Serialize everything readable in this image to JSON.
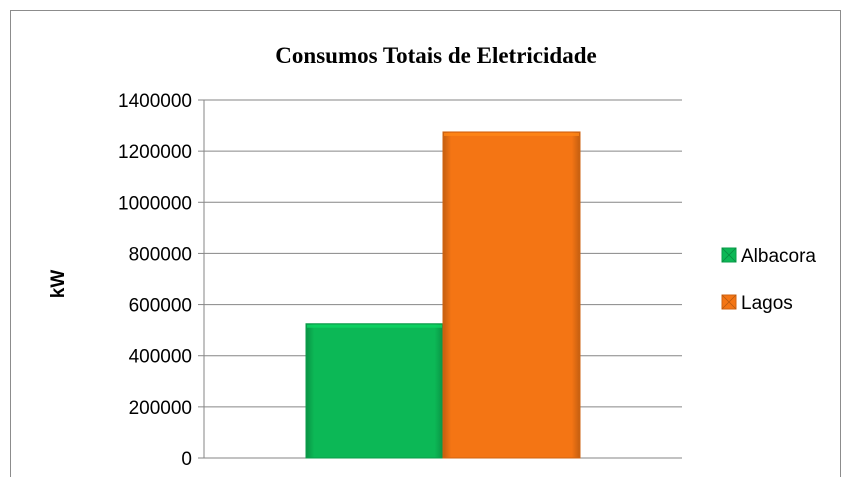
{
  "chart_data": {
    "type": "bar",
    "title": "Consumos Totais de Eletricidade",
    "xlabel": "",
    "ylabel": "kW",
    "ylim": [
      0,
      1400000
    ],
    "yticks": [
      0,
      200000,
      400000,
      600000,
      800000,
      1000000,
      1200000,
      1400000
    ],
    "ytick_labels": [
      "0",
      "200000",
      "400000",
      "600000",
      "800000",
      "1000000",
      "1200000",
      "1400000"
    ],
    "grid": true,
    "legend_position": "right",
    "categories": [
      ""
    ],
    "series": [
      {
        "name": "Albacora",
        "values": [
          525000
        ],
        "color": "#0CB856"
      },
      {
        "name": "Lagos",
        "values": [
          1275000
        ],
        "color": "#F47514"
      }
    ]
  }
}
